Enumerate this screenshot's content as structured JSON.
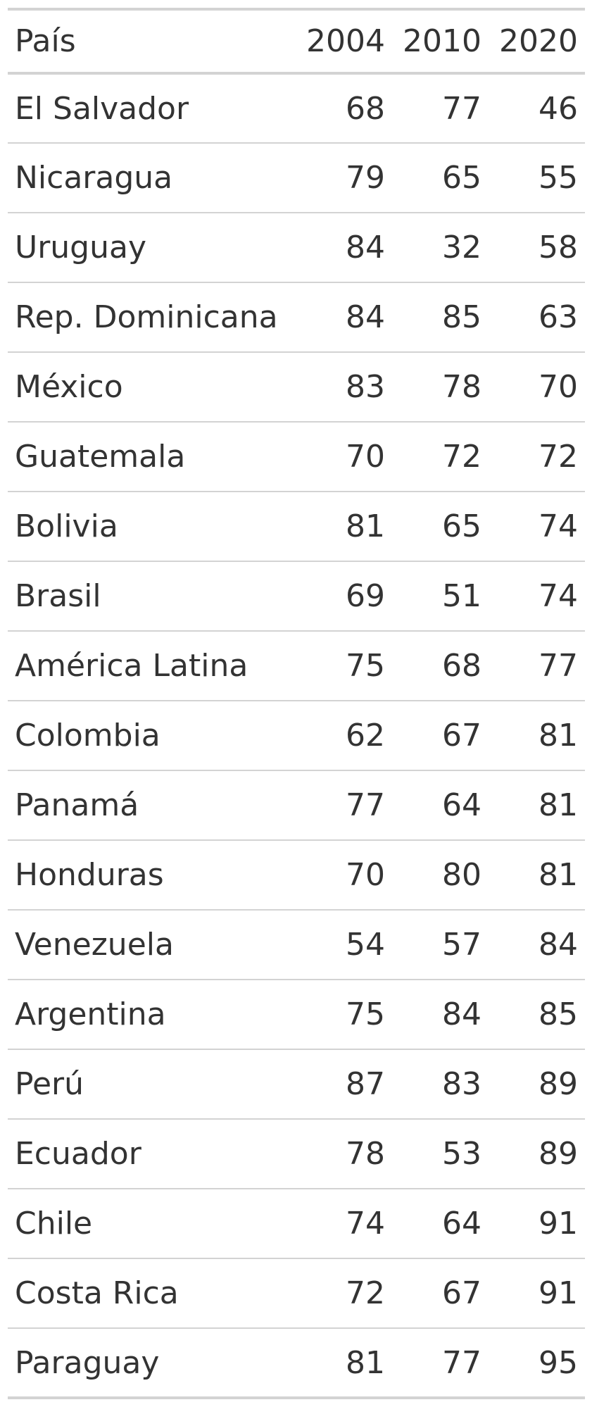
{
  "chart_data": {
    "type": "table",
    "columns": [
      "País",
      "2004",
      "2010",
      "2020"
    ],
    "rows": [
      {
        "country": "El Salvador",
        "values": [
          "68",
          "77",
          "46"
        ]
      },
      {
        "country": "Nicaragua",
        "values": [
          "79",
          "65",
          "55"
        ]
      },
      {
        "country": "Uruguay",
        "values": [
          "84",
          "32",
          "58"
        ]
      },
      {
        "country": "Rep. Dominicana",
        "values": [
          "84",
          "85",
          "63"
        ]
      },
      {
        "country": "México",
        "values": [
          "83",
          "78",
          "70"
        ]
      },
      {
        "country": "Guatemala",
        "values": [
          "70",
          "72",
          "72"
        ]
      },
      {
        "country": "Bolivia",
        "values": [
          "81",
          "65",
          "74"
        ]
      },
      {
        "country": "Brasil",
        "values": [
          "69",
          "51",
          "74"
        ]
      },
      {
        "country": "América Latina",
        "values": [
          "75",
          "68",
          "77"
        ]
      },
      {
        "country": "Colombia",
        "values": [
          "62",
          "67",
          "81"
        ]
      },
      {
        "country": "Panamá",
        "values": [
          "77",
          "64",
          "81"
        ]
      },
      {
        "country": "Honduras",
        "values": [
          "70",
          "80",
          "81"
        ]
      },
      {
        "country": "Venezuela",
        "values": [
          "54",
          "57",
          "84"
        ]
      },
      {
        "country": "Argentina",
        "values": [
          "75",
          "84",
          "85"
        ]
      },
      {
        "country": "Perú",
        "values": [
          "87",
          "83",
          "89"
        ]
      },
      {
        "country": "Ecuador",
        "values": [
          "78",
          "53",
          "89"
        ]
      },
      {
        "country": "Chile",
        "values": [
          "74",
          "64",
          "91"
        ]
      },
      {
        "country": "Costa Rica",
        "values": [
          "72",
          "67",
          "91"
        ]
      },
      {
        "country": "Paraguay",
        "values": [
          "81",
          "77",
          "95"
        ]
      }
    ]
  }
}
